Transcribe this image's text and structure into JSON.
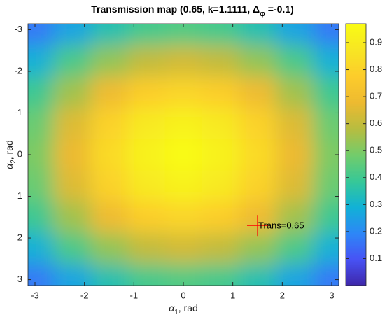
{
  "chart_data": {
    "type": "heatmap",
    "title": [
      "Transmission map (0.65,  k=1.1111,  Δ",
      "φ",
      " =-0.1)"
    ],
    "xlabel": [
      "α",
      "1",
      ", rad"
    ],
    "ylabel": [
      "α",
      "2",
      ", rad"
    ],
    "x": [
      -3,
      -2.25,
      -1.5,
      -0.75,
      0,
      0.75,
      1.5,
      2.25,
      3
    ],
    "y": [
      -3,
      -2.25,
      -1.5,
      -0.75,
      0,
      0.75,
      1.5,
      2.25,
      3
    ],
    "values": [
      [
        0.17,
        0.26,
        0.35,
        0.41,
        0.43,
        0.41,
        0.35,
        0.26,
        0.17
      ],
      [
        0.29,
        0.42,
        0.53,
        0.6,
        0.63,
        0.6,
        0.53,
        0.42,
        0.29
      ],
      [
        0.4,
        0.55,
        0.69,
        0.78,
        0.81,
        0.78,
        0.69,
        0.55,
        0.4
      ],
      [
        0.47,
        0.65,
        0.8,
        0.89,
        0.93,
        0.89,
        0.8,
        0.65,
        0.47
      ],
      [
        0.5,
        0.68,
        0.83,
        0.93,
        0.97,
        0.93,
        0.83,
        0.68,
        0.5
      ],
      [
        0.47,
        0.65,
        0.8,
        0.89,
        0.93,
        0.89,
        0.8,
        0.65,
        0.47
      ],
      [
        0.4,
        0.55,
        0.69,
        0.78,
        0.81,
        0.78,
        0.69,
        0.55,
        0.4
      ],
      [
        0.29,
        0.42,
        0.53,
        0.6,
        0.63,
        0.6,
        0.53,
        0.42,
        0.29
      ],
      [
        0.17,
        0.26,
        0.35,
        0.41,
        0.43,
        0.41,
        0.35,
        0.26,
        0.17
      ]
    ],
    "xlim": [
      -3.1416,
      3.1416
    ],
    "ylim": [
      -3.1416,
      3.1416
    ],
    "y_reversed": true,
    "xticks": [
      -3,
      -2,
      -1,
      0,
      1,
      2,
      3
    ],
    "yticks": [
      -3,
      -2,
      -1,
      0,
      1,
      2,
      3
    ],
    "colormap": "parula",
    "clim": [
      0,
      0.97
    ],
    "colorbar_ticks": [
      0.1,
      0.2,
      0.3,
      0.4,
      0.5,
      0.6,
      0.7,
      0.8,
      0.9
    ],
    "marker": {
      "x": 1.5,
      "y": 1.7,
      "color": "#ff0000",
      "label": "Trans=0.65"
    }
  }
}
